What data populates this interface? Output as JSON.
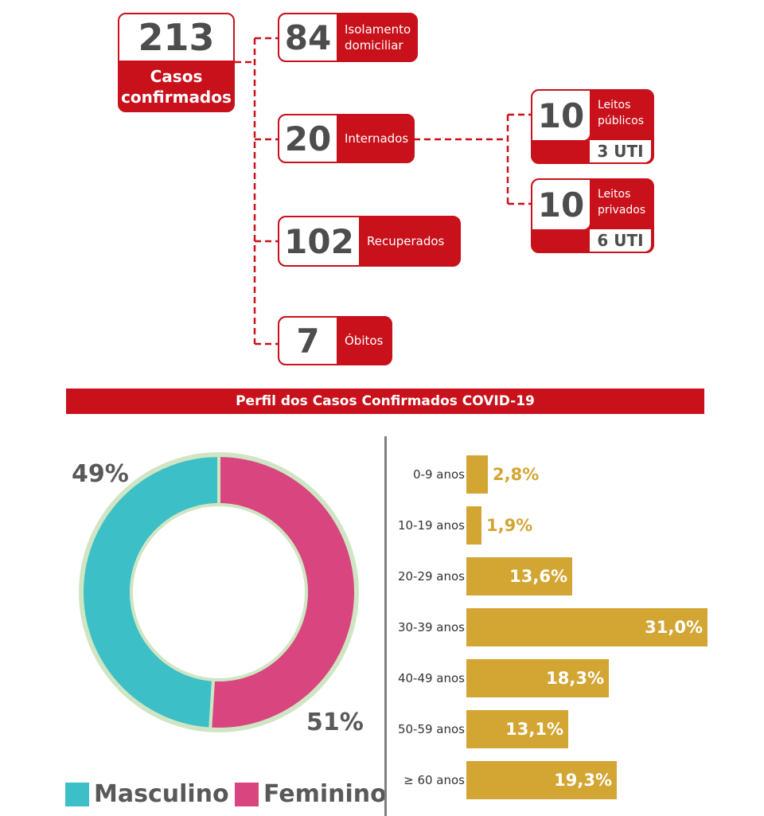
{
  "summary": {
    "confirmed": {
      "value": "213",
      "label_line1": "Casos",
      "label_line2": "confirmados"
    },
    "isolation": {
      "value": "84",
      "label_line1": "Isolamento",
      "label_line2": "domiciliar"
    },
    "hospitalized": {
      "value": "20",
      "label": "Internados"
    },
    "recovered": {
      "value": "102",
      "label": "Recuperados"
    },
    "deaths": {
      "value": "7",
      "label": "Óbitos"
    },
    "public_beds": {
      "value": "10",
      "label_line1": "Leitos",
      "label_line2": "públicos",
      "icu": "3 UTI"
    },
    "private_beds": {
      "value": "10",
      "label_line1": "Leitos",
      "label_line2": "privados",
      "icu": "6 UTI"
    }
  },
  "banner_title": "Perfil dos Casos Confirmados COVID-19",
  "colors": {
    "red": "#c9111b",
    "masculino": "#3cbfc6",
    "feminino": "#d9457e",
    "bar": "#d3a533",
    "ring": "#cfe5c4"
  },
  "chart_data": [
    {
      "type": "pie",
      "categories": [
        "Masculino",
        "Feminino"
      ],
      "values": [
        49,
        51
      ],
      "value_labels": [
        "49%",
        "51%"
      ],
      "legend": [
        "Masculino",
        "Feminino"
      ],
      "legend_position": "bottom"
    },
    {
      "type": "bar",
      "orientation": "horizontal",
      "categories": [
        "0-9 anos",
        "10-19 anos",
        "20-29 anos",
        "30-39 anos",
        "40-49 anos",
        "50-59 anos",
        "≥ 60 anos"
      ],
      "values": [
        2.8,
        1.9,
        13.6,
        31.0,
        18.3,
        13.1,
        19.3
      ],
      "value_labels": [
        "2,8%",
        "1,9%",
        "13,6%",
        "31,0%",
        "18,3%",
        "13,1%",
        "19,3%"
      ],
      "xlim": [
        0,
        31.0
      ]
    }
  ]
}
